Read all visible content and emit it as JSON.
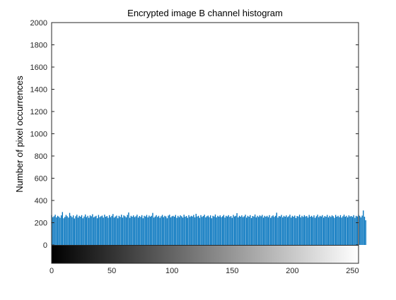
{
  "chart_data": {
    "type": "bar",
    "title": "Encrypted image B channel histogram",
    "xlabel": "",
    "ylabel": "Number of pixel occurrences",
    "xlim": [
      0,
      255
    ],
    "ylim": [
      0,
      2000
    ],
    "x_ticks": [
      "0",
      "50",
      "100",
      "150",
      "200",
      "250"
    ],
    "y_ticks": [
      "0",
      "200",
      "400",
      "600",
      "800",
      "1000",
      "1200",
      "1400",
      "1600",
      "1800",
      "2000"
    ],
    "bar_color": "#0072BD",
    "grayscale_colorbar": true,
    "grid": false,
    "values": [
      268,
      250,
      258,
      272,
      248,
      262,
      255,
      244,
      266,
      296,
      240,
      252,
      270,
      258,
      246,
      288,
      262,
      250,
      266,
      238,
      258,
      272,
      246,
      262,
      254,
      268,
      240,
      256,
      274,
      250,
      262,
      244,
      266,
      258,
      276,
      248,
      256,
      262,
      240,
      270,
      250,
      258,
      264,
      246,
      272,
      254,
      260,
      244,
      268,
      250,
      262,
      278,
      246,
      256,
      264,
      240,
      262,
      252,
      272,
      246,
      266,
      258,
      248,
      270,
      292,
      244,
      262,
      254,
      266,
      250,
      258,
      272,
      246,
      260,
      252,
      268,
      240,
      262,
      256,
      270,
      248,
      264,
      254,
      262,
      288,
      246,
      256,
      268,
      252,
      262,
      244,
      258,
      270,
      250,
      262,
      256,
      240,
      264,
      272,
      248,
      258,
      262,
      254,
      270,
      244,
      262,
      250,
      266,
      258,
      246,
      272,
      254,
      260,
      244,
      268,
      252,
      262,
      256,
      270,
      248,
      280,
      256,
      262,
      244,
      268,
      252,
      260,
      272,
      248,
      258,
      264,
      250,
      266,
      240,
      262,
      256,
      274,
      248,
      262,
      254,
      266,
      250,
      258,
      270,
      246,
      262,
      256,
      268,
      252,
      260,
      244,
      270,
      256,
      262,
      286,
      248,
      262,
      254,
      266,
      250,
      258,
      272,
      246,
      262,
      254,
      268,
      242,
      260,
      256,
      274,
      248,
      262,
      252,
      266,
      258,
      270,
      246,
      262,
      254,
      262,
      250,
      268,
      244,
      258,
      266,
      252,
      262,
      290,
      246,
      260,
      256,
      270,
      248,
      262,
      254,
      266,
      250,
      258,
      272,
      246,
      262,
      254,
      264,
      242,
      260,
      256,
      272,
      248,
      262,
      252,
      268,
      256,
      260,
      246,
      270,
      254,
      262,
      250,
      266,
      244,
      258,
      272,
      250,
      262,
      256,
      268,
      246,
      260,
      254,
      270,
      248,
      262,
      252,
      266,
      258,
      244,
      270,
      254,
      262,
      250,
      268,
      246,
      258,
      272,
      254,
      262,
      248,
      266,
      256,
      260,
      252,
      268,
      244,
      262,
      256,
      270,
      262,
      248,
      264,
      310,
      254,
      222
    ]
  }
}
